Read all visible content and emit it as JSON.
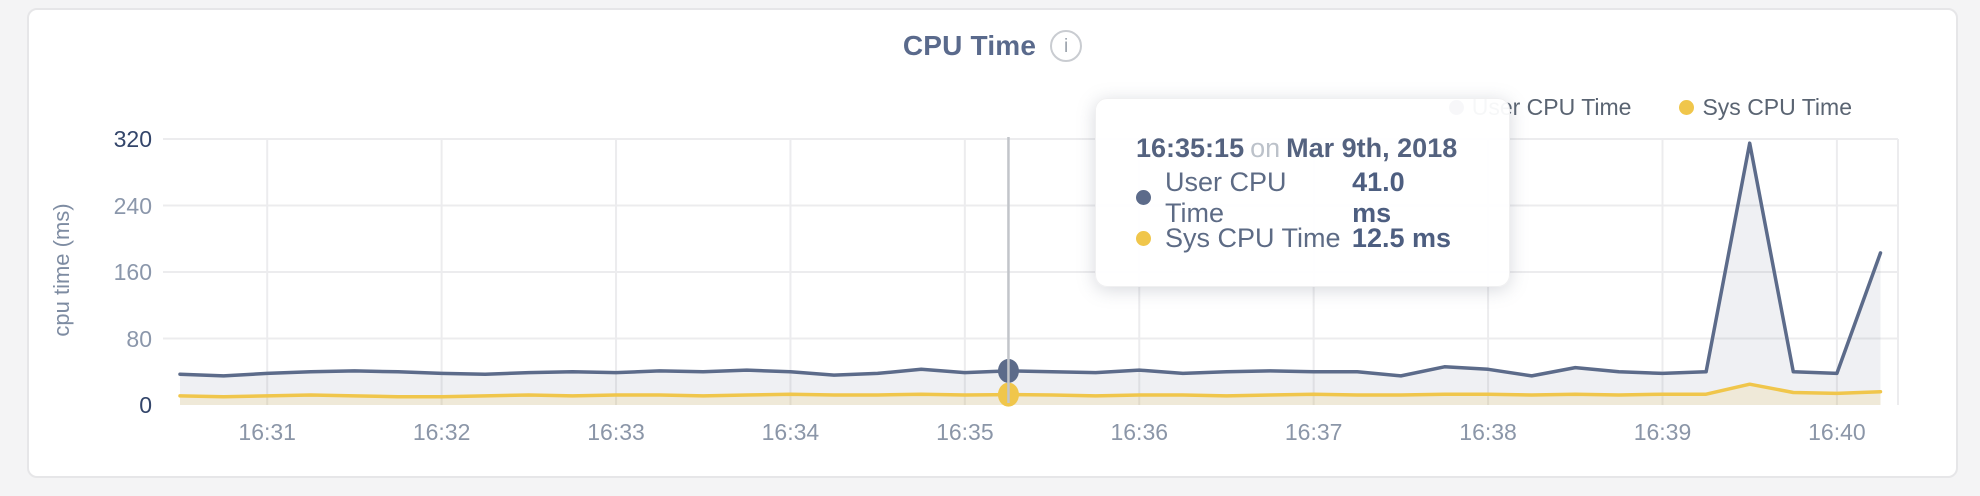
{
  "card": {
    "title": "CPU Time",
    "info_icon": "i"
  },
  "legend": {
    "items": [
      {
        "label": "User CPU Time",
        "color": "#5c6b8a"
      },
      {
        "label": "Sys CPU Time",
        "color": "#f0c64b"
      }
    ]
  },
  "axes": {
    "y_label": "cpu time (ms)",
    "y_ticks": [
      {
        "label": "320",
        "value": 320,
        "major": true
      },
      {
        "label": "240",
        "value": 240,
        "major": false
      },
      {
        "label": "160",
        "value": 160,
        "major": false
      },
      {
        "label": "80",
        "value": 80,
        "major": false
      },
      {
        "label": "0",
        "value": 0,
        "major": true
      }
    ],
    "x_ticks": [
      "16:31",
      "16:32",
      "16:33",
      "16:34",
      "16:35",
      "16:36",
      "16:37",
      "16:38",
      "16:39",
      "16:40"
    ],
    "tick_color_major": "#33456a",
    "tick_color_minor": "#8b97ab",
    "x_tick_color": "#8b96a8",
    "grid_color": "#ececee"
  },
  "tooltip": {
    "time": "16:35:15",
    "conjunction": "on",
    "date": "Mar 9th, 2018",
    "rows": [
      {
        "series": "User CPU Time",
        "value": "41.0 ms",
        "color": "#5c6b8a"
      },
      {
        "series": "Sys CPU Time",
        "value": "12.5 ms",
        "color": "#f0c64b"
      }
    ]
  },
  "chart_data": {
    "type": "area",
    "title": "CPU Time",
    "ylabel": "cpu time (ms)",
    "ylim": [
      0,
      320
    ],
    "grid": true,
    "legend_position": "top-right",
    "x_tick_labels": [
      "16:31",
      "16:32",
      "16:33",
      "16:34",
      "16:35",
      "16:36",
      "16:37",
      "16:38",
      "16:39",
      "16:40"
    ],
    "times": [
      "16:30:30",
      "16:30:45",
      "16:31:00",
      "16:31:15",
      "16:31:30",
      "16:31:45",
      "16:32:00",
      "16:32:15",
      "16:32:30",
      "16:32:45",
      "16:33:00",
      "16:33:15",
      "16:33:30",
      "16:33:45",
      "16:34:00",
      "16:34:15",
      "16:34:30",
      "16:34:45",
      "16:35:00",
      "16:35:15",
      "16:35:30",
      "16:35:45",
      "16:36:00",
      "16:36:15",
      "16:36:30",
      "16:36:45",
      "16:37:00",
      "16:37:15",
      "16:37:30",
      "16:37:45",
      "16:38:00",
      "16:38:15",
      "16:38:30",
      "16:38:45",
      "16:39:00",
      "16:39:15",
      "16:39:30",
      "16:39:45",
      "16:40:00",
      "16:40:15"
    ],
    "series": [
      {
        "name": "User CPU Time",
        "color": "#5c6b8a",
        "fill": "rgba(96,110,138,0.10)",
        "values": [
          37,
          35,
          38,
          40,
          41,
          40,
          38,
          37,
          39,
          40,
          39,
          41,
          40,
          42,
          40,
          36,
          38,
          43,
          39,
          41,
          40,
          39,
          42,
          38,
          40,
          41,
          40,
          40,
          35,
          46,
          43,
          35,
          45,
          40,
          38,
          40,
          315,
          40,
          38,
          183
        ]
      },
      {
        "name": "Sys CPU Time",
        "color": "#f0c64b",
        "fill": "rgba(240,198,75,0.16)",
        "values": [
          11,
          10,
          11,
          12,
          11,
          10,
          10,
          11,
          12,
          11,
          12,
          12,
          11,
          12,
          13,
          12,
          12,
          13,
          12,
          12.5,
          12,
          11,
          12,
          12,
          11,
          12,
          13,
          12,
          12,
          13,
          13,
          12,
          13,
          12,
          13,
          13,
          25,
          15,
          14,
          16
        ]
      }
    ],
    "hover": {
      "index": 19,
      "time": "16:35:15",
      "user_ms": 41.0,
      "sys_ms": 12.5
    }
  }
}
